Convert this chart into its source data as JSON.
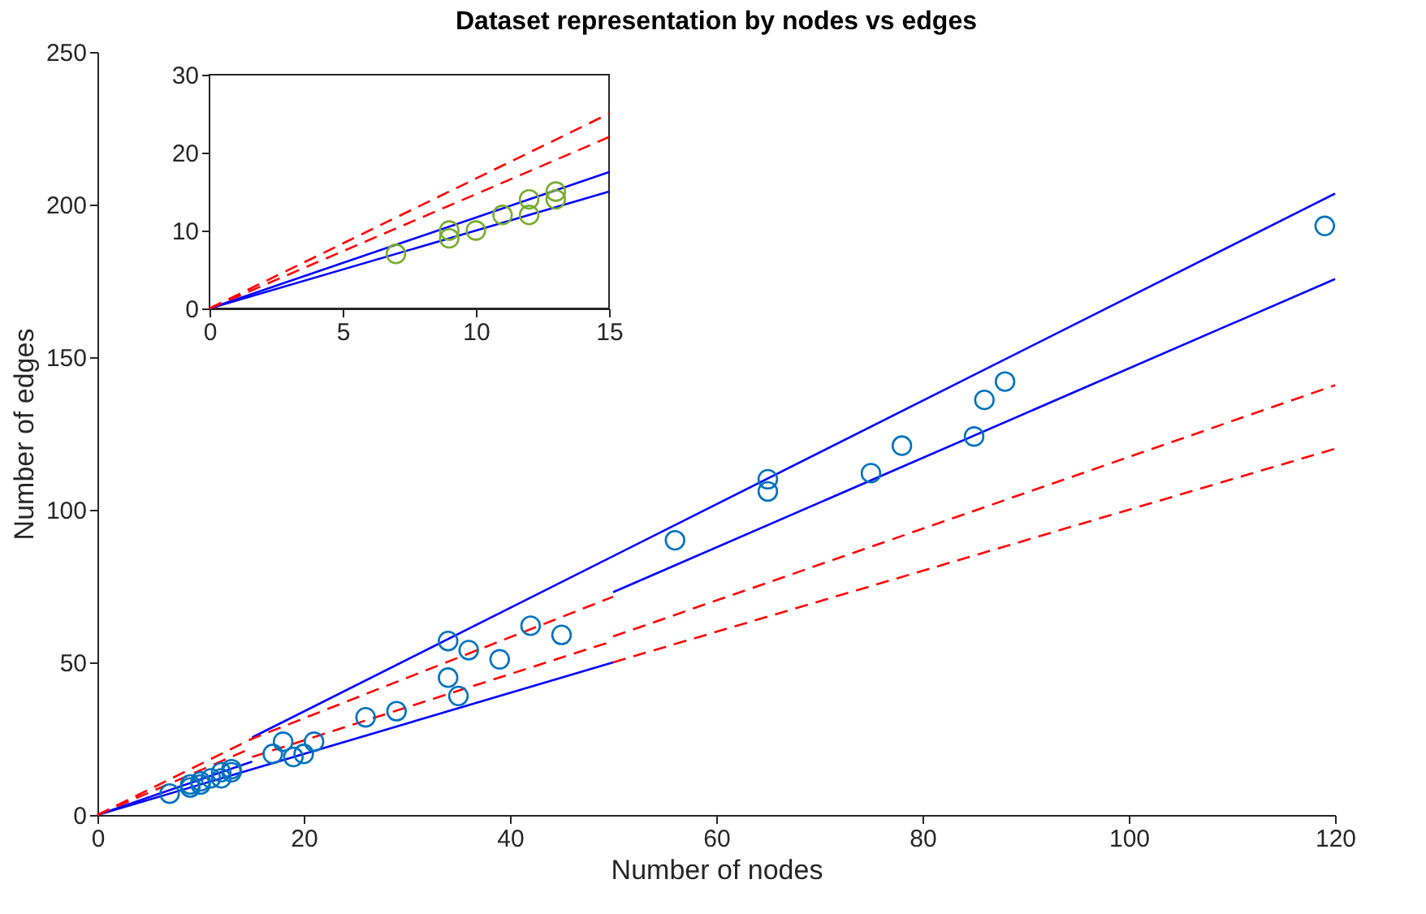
{
  "chart_data": [
    {
      "type": "scatter",
      "title": "Dataset representation by nodes vs edges",
      "xlabel": "Number of nodes",
      "ylabel": "Number of edges",
      "xlim": [
        0,
        120
      ],
      "xticks": [
        0,
        20,
        40,
        60,
        80,
        100,
        120
      ],
      "ylim": [
        0,
        250
      ],
      "yticks": [
        0,
        50,
        100,
        150,
        200,
        250
      ],
      "series": [
        {
          "type": "line",
          "color": "#0000ff",
          "line_style": "solid",
          "x": [
            0,
            15
          ],
          "values": [
            0,
            17.5
          ]
        },
        {
          "type": "line",
          "color": "#0000ff",
          "line_style": "solid",
          "x": [
            15,
            120
          ],
          "values": [
            25.4,
            203.6
          ]
        },
        {
          "type": "line",
          "color": "#0000ff",
          "line_style": "solid",
          "x": [
            0,
            50
          ],
          "values": [
            0,
            50
          ]
        },
        {
          "type": "line",
          "color": "#0000ff",
          "line_style": "solid",
          "x": [
            50,
            120
          ],
          "values": [
            73,
            175.6
          ]
        },
        {
          "type": "line",
          "color": "#ff0000",
          "line_style": "dashed",
          "x": [
            0,
            15,
            50
          ],
          "values": [
            0,
            25,
            71.5
          ]
        },
        {
          "type": "line",
          "color": "#ff0000",
          "line_style": "dashed",
          "x": [
            50,
            120
          ],
          "values": [
            58.5,
            140.8
          ]
        },
        {
          "type": "line",
          "color": "#ff0000",
          "line_style": "dashed",
          "x": [
            0,
            15
          ],
          "values": [
            0,
            22
          ]
        },
        {
          "type": "line",
          "color": "#ff0000",
          "line_style": "dashed",
          "x": [
            15,
            50
          ],
          "values": [
            19,
            57
          ]
        },
        {
          "type": "line",
          "color": "#ff0000",
          "line_style": "dashed",
          "x": [
            50,
            120
          ],
          "values": [
            50,
            120
          ]
        },
        {
          "color": "#0072bd",
          "marker": "circle",
          "x": [
            7,
            9,
            9,
            10,
            10,
            11,
            12,
            12,
            13,
            13,
            17,
            18,
            19,
            20,
            21,
            26,
            29,
            34,
            34,
            35,
            36,
            39,
            42,
            45,
            56,
            65,
            65,
            75,
            78,
            85,
            86,
            88,
            119
          ],
          "values": [
            7,
            9,
            10,
            10,
            11,
            12,
            12,
            14,
            14,
            15,
            20,
            24,
            19,
            20,
            24,
            32,
            34,
            45,
            57,
            39,
            54,
            51,
            62,
            59,
            90,
            106,
            110,
            112,
            121,
            124,
            136,
            142,
            193
          ]
        }
      ]
    },
    {
      "type": "scatter",
      "xlim": [
        0,
        15
      ],
      "xticks": [
        0,
        5,
        10,
        15
      ],
      "ylim": [
        0,
        30
      ],
      "yticks": [
        0,
        10,
        20,
        30
      ],
      "series": [
        {
          "type": "line",
          "color": "#0000ff",
          "line_style": "solid",
          "x": [
            0,
            15
          ],
          "values": [
            0,
            17.5
          ]
        },
        {
          "type": "line",
          "color": "#0000ff",
          "line_style": "solid",
          "x": [
            0,
            15
          ],
          "values": [
            0,
            15
          ]
        },
        {
          "type": "line",
          "color": "#ff0000",
          "line_style": "dashed",
          "x": [
            0,
            15
          ],
          "values": [
            0,
            25
          ]
        },
        {
          "type": "line",
          "color": "#ff0000",
          "line_style": "dashed",
          "x": [
            0,
            15
          ],
          "values": [
            0,
            22
          ]
        },
        {
          "color": "#77ac30",
          "marker": "circle",
          "x": [
            7,
            9,
            9,
            10,
            11,
            12,
            12,
            13,
            13
          ],
          "values": [
            7,
            9,
            10,
            10,
            12,
            12,
            14,
            14,
            15
          ]
        }
      ]
    }
  ]
}
